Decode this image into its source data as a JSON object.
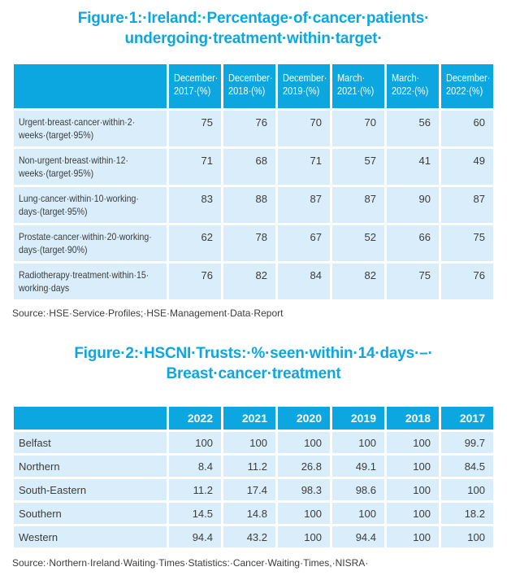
{
  "colors": {
    "header_bg": "#0ca7e0",
    "row_bg": "#d9eefa",
    "title_text": "#0ca7e0",
    "body_text": "#3c3c3b"
  },
  "figure1": {
    "title": "Figure·1:·Ireland:·Percentage·of·cancer·patients·\nundergoing·treatment·within·target·",
    "columns": [
      "December·\n2017·(%)",
      "December·\n2018·(%)",
      "December·\n2019·(%)",
      "March·\n2021·(%)",
      "March·\n2022·(%)",
      "December·\n2022·(%)"
    ],
    "rows": [
      {
        "label": "Urgent·breast·cancer·within·2·\nweeks·(target·95%)",
        "values": [
          "75",
          "76",
          "70",
          "70",
          "56",
          "60"
        ]
      },
      {
        "label": "Non-urgent·breast·within·12·\nweeks·(target·95%)",
        "values": [
          "71",
          "68",
          "71",
          "57",
          "41",
          "49"
        ]
      },
      {
        "label": "Lung·cancer·within·10·working·\ndays·(target·95%)",
        "values": [
          "83",
          "88",
          "87",
          "87",
          "90",
          "87"
        ]
      },
      {
        "label": "Prostate·cancer·within·20·working·\ndays·(target·90%)",
        "values": [
          "62",
          "78",
          "67",
          "52",
          "66",
          "75"
        ]
      },
      {
        "label": "Radiotherapy·treatment·within·15·\nworking·days",
        "values": [
          "76",
          "82",
          "84",
          "82",
          "75",
          "76"
        ]
      }
    ],
    "source": "Source:·HSE·Service·Profiles;·HSE·Management·Data·Report"
  },
  "figure2": {
    "title": "Figure·2:·HSCNI·Trusts:·%·seen·within·14·days·–·\nBreast·cancer·treatment",
    "columns": [
      "2022",
      "2021",
      "2020",
      "2019",
      "2018",
      "2017"
    ],
    "rows": [
      {
        "label": "Belfast",
        "values": [
          "100",
          "100",
          "100",
          "100",
          "100",
          "99.7"
        ]
      },
      {
        "label": "Northern",
        "values": [
          "8.4",
          "11.2",
          "26.8",
          "49.1",
          "100",
          "84.5"
        ]
      },
      {
        "label": "South-Eastern",
        "values": [
          "11.2",
          "17.4",
          "98.3",
          "98.6",
          "100",
          "100"
        ]
      },
      {
        "label": "Southern",
        "values": [
          "14.5",
          "14.8",
          "100",
          "100",
          "100",
          "18.2"
        ]
      },
      {
        "label": "Western",
        "values": [
          "94.4",
          "43.2",
          "100",
          "94.4",
          "100",
          "100"
        ]
      }
    ],
    "source": "Source:·Northern·Ireland·Waiting·Times·Statistics:·Cancer·Waiting·Times,·NISRA·"
  }
}
